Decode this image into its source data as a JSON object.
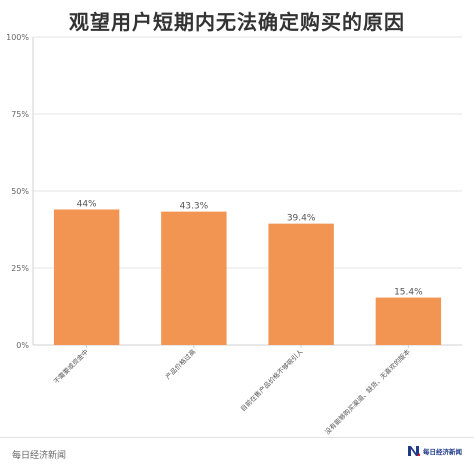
{
  "chart_data": {
    "type": "bar",
    "title": "观望用户短期内无法确定购买的原因",
    "categories": [
      "不需要或资金中",
      "产品价格过高",
      "目前在售产品价格不够吸引人",
      "没有能够购买渠道、缺货、无喜欢的版本"
    ],
    "values": [
      44,
      43.3,
      39.4,
      15.4
    ],
    "value_labels": [
      "44%",
      "43.3%",
      "39.4%",
      "15.4%"
    ],
    "ylim": [
      0,
      100
    ],
    "y_ticks": [
      0,
      25,
      50,
      75,
      100
    ],
    "y_tick_labels": [
      "0%",
      "25%",
      "50%",
      "75%",
      "100%"
    ],
    "xlabel": "",
    "ylabel": "",
    "grid": true,
    "legend": "none",
    "bar_color": "#f29452",
    "grid_color": "#e4e4e4",
    "axis_color": "#d0d0d0"
  },
  "footer": {
    "source": "每日经济新闻",
    "logo_text": "每日经济新闻",
    "logo_icon": "nbd-logo-icon",
    "logo_colors": [
      "#1f3a8a",
      "#e02020"
    ]
  }
}
